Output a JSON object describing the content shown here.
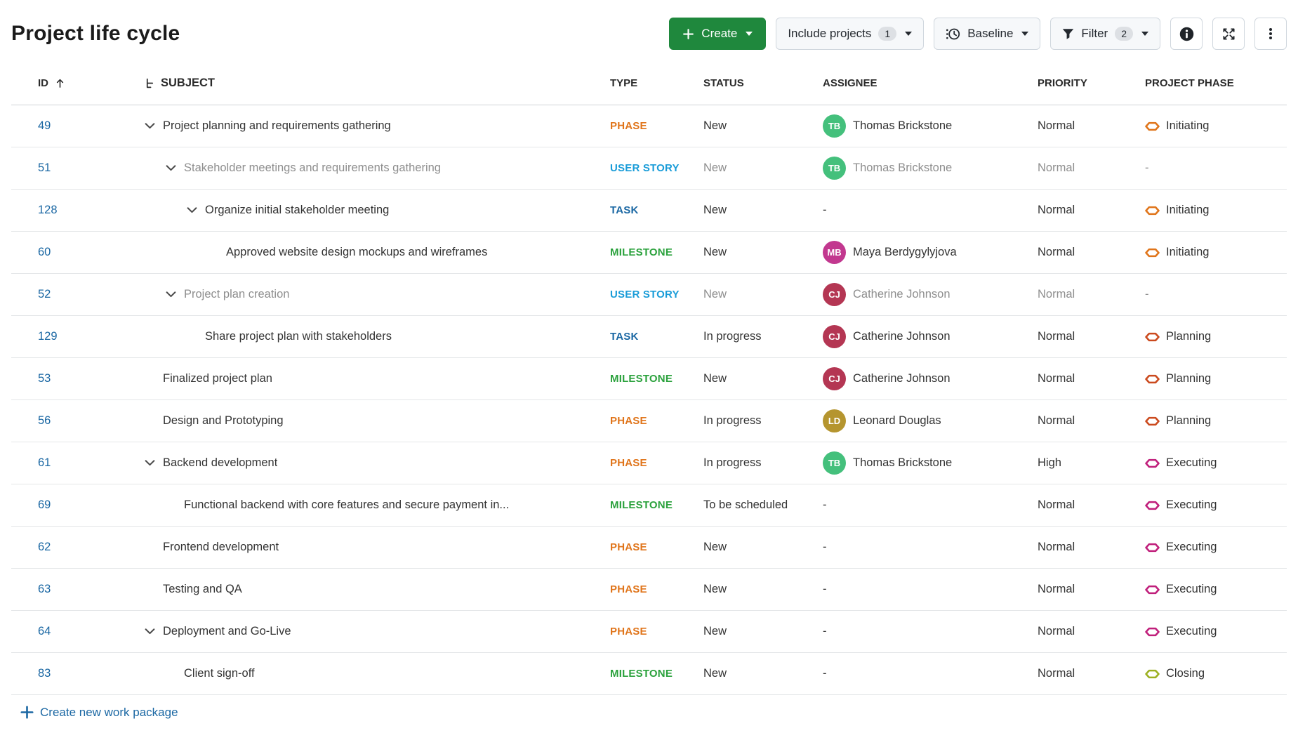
{
  "page": {
    "title": "Project life cycle"
  },
  "toolbar": {
    "create_label": "Create",
    "include_projects_label": "Include projects",
    "include_projects_badge": "1",
    "baseline_label": "Baseline",
    "filter_label": "Filter",
    "filter_badge": "2",
    "icons": [
      "plus-icon",
      "chevron-down-icon",
      "baseline-clock-icon",
      "filter-funnel-icon",
      "info-icon",
      "fullscreen-icon",
      "kebab-menu-icon"
    ]
  },
  "table": {
    "columns": [
      "ID",
      "SUBJECT",
      "TYPE",
      "STATUS",
      "ASSIGNEE",
      "PRIORITY",
      "PROJECT PHASE"
    ],
    "sort": {
      "column": "ID",
      "direction": "asc"
    },
    "rows": [
      {
        "id": "49",
        "subject": "Project planning and requirements gathering",
        "level": 0,
        "chevron": true,
        "type": "PHASE",
        "status": "New",
        "assignee": {
          "initials": "TB",
          "name": "Thomas Brickstone",
          "color": "#44c07c"
        },
        "priority": "Normal",
        "phase": "Initiating",
        "muted": false
      },
      {
        "id": "51",
        "subject": "Stakeholder meetings and requirements gathering",
        "level": 1,
        "chevron": true,
        "type": "USER STORY",
        "status": "New",
        "assignee": {
          "initials": "TB",
          "name": "Thomas Brickstone",
          "color": "#44c07c"
        },
        "priority": "Normal",
        "phase": "-",
        "muted": true
      },
      {
        "id": "128",
        "subject": "Organize initial stakeholder meeting",
        "level": 2,
        "chevron": true,
        "type": "TASK",
        "status": "New",
        "assignee": null,
        "priority": "Normal",
        "phase": "Initiating",
        "muted": false
      },
      {
        "id": "60",
        "subject": "Approved website design mockups and wireframes",
        "level": 3,
        "chevron": false,
        "type": "MILESTONE",
        "status": "New",
        "assignee": {
          "initials": "MB",
          "name": "Maya Berdygylyjova",
          "color": "#c2388f"
        },
        "priority": "Normal",
        "phase": "Initiating",
        "muted": false
      },
      {
        "id": "52",
        "subject": "Project plan creation",
        "level": 1,
        "chevron": true,
        "type": "USER STORY",
        "status": "New",
        "assignee": {
          "initials": "CJ",
          "name": "Catherine Johnson",
          "color": "#b43653"
        },
        "priority": "Normal",
        "phase": "-",
        "muted": true
      },
      {
        "id": "129",
        "subject": "Share project plan with stakeholders",
        "level": 2,
        "chevron": false,
        "type": "TASK",
        "status": "In progress",
        "assignee": {
          "initials": "CJ",
          "name": "Catherine Johnson",
          "color": "#b43653"
        },
        "priority": "Normal",
        "phase": "Planning",
        "muted": false
      },
      {
        "id": "53",
        "subject": "Finalized project plan",
        "level": 0,
        "chevron": false,
        "type": "MILESTONE",
        "status": "New",
        "assignee": {
          "initials": "CJ",
          "name": "Catherine Johnson",
          "color": "#b43653"
        },
        "priority": "Normal",
        "phase": "Planning",
        "muted": false
      },
      {
        "id": "56",
        "subject": "Design and Prototyping",
        "level": 0,
        "chevron": false,
        "type": "PHASE",
        "status": "In progress",
        "assignee": {
          "initials": "LD",
          "name": "Leonard Douglas",
          "color": "#b5952f"
        },
        "priority": "Normal",
        "phase": "Planning",
        "muted": false
      },
      {
        "id": "61",
        "subject": "Backend development",
        "level": 0,
        "chevron": true,
        "type": "PHASE",
        "status": "In progress",
        "assignee": {
          "initials": "TB",
          "name": "Thomas Brickstone",
          "color": "#44c07c"
        },
        "priority": "High",
        "phase": "Executing",
        "muted": false
      },
      {
        "id": "69",
        "subject": "Functional backend with core features and secure payment in...",
        "level": 1,
        "chevron": false,
        "type": "MILESTONE",
        "status": "To be scheduled",
        "assignee": null,
        "priority": "Normal",
        "phase": "Executing",
        "muted": false
      },
      {
        "id": "62",
        "subject": "Frontend development",
        "level": 0,
        "chevron": false,
        "type": "PHASE",
        "status": "New",
        "assignee": null,
        "priority": "Normal",
        "phase": "Executing",
        "muted": false
      },
      {
        "id": "63",
        "subject": "Testing and QA",
        "level": 0,
        "chevron": false,
        "type": "PHASE",
        "status": "New",
        "assignee": null,
        "priority": "Normal",
        "phase": "Executing",
        "muted": false
      },
      {
        "id": "64",
        "subject": "Deployment and Go-Live",
        "level": 0,
        "chevron": true,
        "type": "PHASE",
        "status": "New",
        "assignee": null,
        "priority": "Normal",
        "phase": "Executing",
        "muted": false
      },
      {
        "id": "83",
        "subject": "Client sign-off",
        "level": 1,
        "chevron": false,
        "type": "MILESTONE",
        "status": "New",
        "assignee": null,
        "priority": "Normal",
        "phase": "Closing",
        "muted": false
      }
    ]
  },
  "footer": {
    "create_link": "Create new work package"
  },
  "colors": {
    "accent_green": "#1f883d",
    "link_blue": "#1a67a3",
    "type": {
      "PHASE": "#e0751b",
      "USER STORY": "#199cd8",
      "TASK": "#1a67a3",
      "MILESTONE": "#2aa13c"
    },
    "phase": {
      "Initiating": "#e0751b",
      "Planning": "#cb4a1e",
      "Executing": "#c01f7b",
      "Closing": "#9cb021"
    }
  }
}
